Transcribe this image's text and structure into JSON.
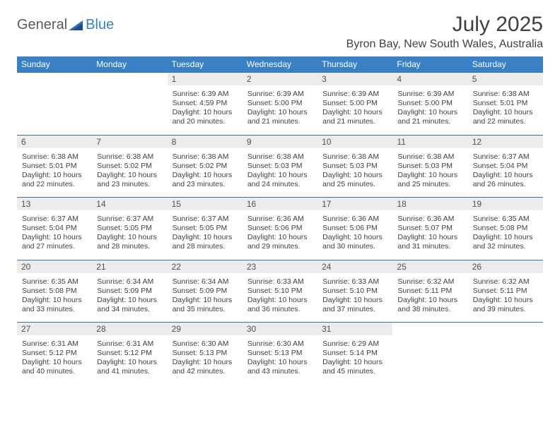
{
  "brand": {
    "part1": "General",
    "part2": "Blue"
  },
  "colors": {
    "header_bg": "#3a80c4",
    "header_text": "#ffffff",
    "daynum_bg": "#ececec",
    "border": "#3a6fa0",
    "text": "#404040",
    "logo_gray": "#5a5a5a",
    "logo_blue": "#3a7fc4"
  },
  "title": "July 2025",
  "location": "Byron Bay, New South Wales, Australia",
  "dow": [
    "Sunday",
    "Monday",
    "Tuesday",
    "Wednesday",
    "Thursday",
    "Friday",
    "Saturday"
  ],
  "weeks": [
    [
      {
        "n": "",
        "lines": []
      },
      {
        "n": "",
        "lines": []
      },
      {
        "n": "1",
        "lines": [
          "Sunrise: 6:39 AM",
          "Sunset: 4:59 PM",
          "Daylight: 10 hours and 20 minutes."
        ]
      },
      {
        "n": "2",
        "lines": [
          "Sunrise: 6:39 AM",
          "Sunset: 5:00 PM",
          "Daylight: 10 hours and 21 minutes."
        ]
      },
      {
        "n": "3",
        "lines": [
          "Sunrise: 6:39 AM",
          "Sunset: 5:00 PM",
          "Daylight: 10 hours and 21 minutes."
        ]
      },
      {
        "n": "4",
        "lines": [
          "Sunrise: 6:39 AM",
          "Sunset: 5:00 PM",
          "Daylight: 10 hours and 21 minutes."
        ]
      },
      {
        "n": "5",
        "lines": [
          "Sunrise: 6:38 AM",
          "Sunset: 5:01 PM",
          "Daylight: 10 hours and 22 minutes."
        ]
      }
    ],
    [
      {
        "n": "6",
        "lines": [
          "Sunrise: 6:38 AM",
          "Sunset: 5:01 PM",
          "Daylight: 10 hours and 22 minutes."
        ]
      },
      {
        "n": "7",
        "lines": [
          "Sunrise: 6:38 AM",
          "Sunset: 5:02 PM",
          "Daylight: 10 hours and 23 minutes."
        ]
      },
      {
        "n": "8",
        "lines": [
          "Sunrise: 6:38 AM",
          "Sunset: 5:02 PM",
          "Daylight: 10 hours and 23 minutes."
        ]
      },
      {
        "n": "9",
        "lines": [
          "Sunrise: 6:38 AM",
          "Sunset: 5:03 PM",
          "Daylight: 10 hours and 24 minutes."
        ]
      },
      {
        "n": "10",
        "lines": [
          "Sunrise: 6:38 AM",
          "Sunset: 5:03 PM",
          "Daylight: 10 hours and 25 minutes."
        ]
      },
      {
        "n": "11",
        "lines": [
          "Sunrise: 6:38 AM",
          "Sunset: 5:03 PM",
          "Daylight: 10 hours and 25 minutes."
        ]
      },
      {
        "n": "12",
        "lines": [
          "Sunrise: 6:37 AM",
          "Sunset: 5:04 PM",
          "Daylight: 10 hours and 26 minutes."
        ]
      }
    ],
    [
      {
        "n": "13",
        "lines": [
          "Sunrise: 6:37 AM",
          "Sunset: 5:04 PM",
          "Daylight: 10 hours and 27 minutes."
        ]
      },
      {
        "n": "14",
        "lines": [
          "Sunrise: 6:37 AM",
          "Sunset: 5:05 PM",
          "Daylight: 10 hours and 28 minutes."
        ]
      },
      {
        "n": "15",
        "lines": [
          "Sunrise: 6:37 AM",
          "Sunset: 5:05 PM",
          "Daylight: 10 hours and 28 minutes."
        ]
      },
      {
        "n": "16",
        "lines": [
          "Sunrise: 6:36 AM",
          "Sunset: 5:06 PM",
          "Daylight: 10 hours and 29 minutes."
        ]
      },
      {
        "n": "17",
        "lines": [
          "Sunrise: 6:36 AM",
          "Sunset: 5:06 PM",
          "Daylight: 10 hours and 30 minutes."
        ]
      },
      {
        "n": "18",
        "lines": [
          "Sunrise: 6:36 AM",
          "Sunset: 5:07 PM",
          "Daylight: 10 hours and 31 minutes."
        ]
      },
      {
        "n": "19",
        "lines": [
          "Sunrise: 6:35 AM",
          "Sunset: 5:08 PM",
          "Daylight: 10 hours and 32 minutes."
        ]
      }
    ],
    [
      {
        "n": "20",
        "lines": [
          "Sunrise: 6:35 AM",
          "Sunset: 5:08 PM",
          "Daylight: 10 hours and 33 minutes."
        ]
      },
      {
        "n": "21",
        "lines": [
          "Sunrise: 6:34 AM",
          "Sunset: 5:09 PM",
          "Daylight: 10 hours and 34 minutes."
        ]
      },
      {
        "n": "22",
        "lines": [
          "Sunrise: 6:34 AM",
          "Sunset: 5:09 PM",
          "Daylight: 10 hours and 35 minutes."
        ]
      },
      {
        "n": "23",
        "lines": [
          "Sunrise: 6:33 AM",
          "Sunset: 5:10 PM",
          "Daylight: 10 hours and 36 minutes."
        ]
      },
      {
        "n": "24",
        "lines": [
          "Sunrise: 6:33 AM",
          "Sunset: 5:10 PM",
          "Daylight: 10 hours and 37 minutes."
        ]
      },
      {
        "n": "25",
        "lines": [
          "Sunrise: 6:32 AM",
          "Sunset: 5:11 PM",
          "Daylight: 10 hours and 38 minutes."
        ]
      },
      {
        "n": "26",
        "lines": [
          "Sunrise: 6:32 AM",
          "Sunset: 5:11 PM",
          "Daylight: 10 hours and 39 minutes."
        ]
      }
    ],
    [
      {
        "n": "27",
        "lines": [
          "Sunrise: 6:31 AM",
          "Sunset: 5:12 PM",
          "Daylight: 10 hours and 40 minutes."
        ]
      },
      {
        "n": "28",
        "lines": [
          "Sunrise: 6:31 AM",
          "Sunset: 5:12 PM",
          "Daylight: 10 hours and 41 minutes."
        ]
      },
      {
        "n": "29",
        "lines": [
          "Sunrise: 6:30 AM",
          "Sunset: 5:13 PM",
          "Daylight: 10 hours and 42 minutes."
        ]
      },
      {
        "n": "30",
        "lines": [
          "Sunrise: 6:30 AM",
          "Sunset: 5:13 PM",
          "Daylight: 10 hours and 43 minutes."
        ]
      },
      {
        "n": "31",
        "lines": [
          "Sunrise: 6:29 AM",
          "Sunset: 5:14 PM",
          "Daylight: 10 hours and 45 minutes."
        ]
      },
      {
        "n": "",
        "lines": []
      },
      {
        "n": "",
        "lines": []
      }
    ]
  ]
}
